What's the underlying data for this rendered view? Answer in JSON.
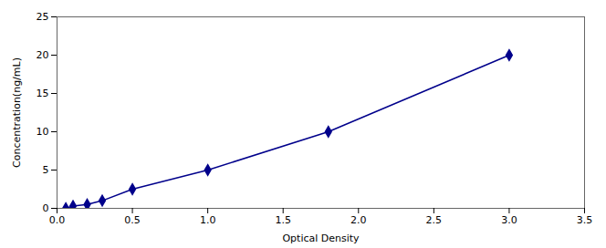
{
  "chart_data": {
    "type": "line",
    "x": [
      0.058,
      0.106,
      0.2,
      0.3,
      0.5,
      1.0,
      1.8,
      3.0
    ],
    "values": [
      0.0,
      0.3,
      0.5,
      1.0,
      2.5,
      5.0,
      10.0,
      20.0
    ],
    "color": "#00008B",
    "marker": "diamond",
    "line_style": "solid",
    "xlabel": "Optical Density",
    "ylabel": "Concentration(ng/mL)",
    "xlim": [
      0,
      3.5
    ],
    "ylim": [
      0,
      25
    ],
    "xticks": [
      {
        "value": 0,
        "label": "0.0"
      },
      0.5,
      {
        "value": 1,
        "label": "1.0"
      },
      1.5,
      {
        "value": 2,
        "label": "2.0"
      },
      2.5,
      {
        "value": 3,
        "label": "3.0"
      },
      3.5
    ],
    "yticks": [
      0,
      5,
      10,
      15,
      20,
      25
    ],
    "grid": false
  }
}
